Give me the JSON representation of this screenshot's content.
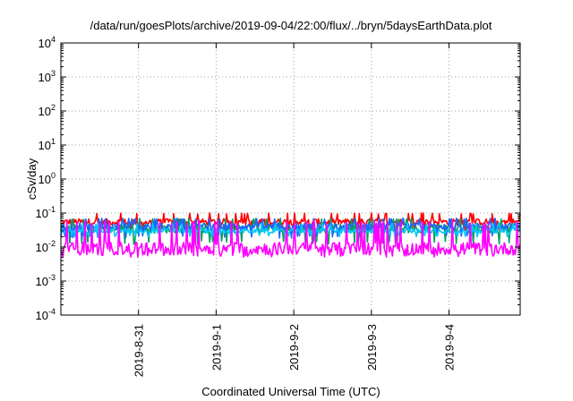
{
  "chart_data": {
    "type": "line",
    "title": "/data/run/goesPlots/archive/2019-09-04/22:00/flux/../bryn/5daysEarthData.plot",
    "xlabel": "Coordinated Universal Time (UTC)",
    "ylabel": "cSv/day",
    "yscale": "log",
    "ylim": [
      0.0001,
      10000
    ],
    "yticks": [
      {
        "value": 0.0001,
        "base": "10",
        "exp": "-4"
      },
      {
        "value": 0.001,
        "base": "10",
        "exp": "-3"
      },
      {
        "value": 0.01,
        "base": "10",
        "exp": "-2"
      },
      {
        "value": 0.1,
        "base": "10",
        "exp": "-1"
      },
      {
        "value": 1,
        "base": "10",
        "exp": "0"
      },
      {
        "value": 10,
        "base": "10",
        "exp": "1"
      },
      {
        "value": 100,
        "base": "10",
        "exp": "2"
      },
      {
        "value": 1000,
        "base": "10",
        "exp": "3"
      },
      {
        "value": 10000,
        "base": "10",
        "exp": "4"
      }
    ],
    "xlim": [
      "2019-08-30 00:00",
      "2019-09-04 22:00"
    ],
    "xticks": [
      "2019-8-31",
      "2019-9-1",
      "2019-9-2",
      "2019-9-3",
      "2019-9-4"
    ],
    "grid": true,
    "series": [
      {
        "color": "#ff0000",
        "typical": 0.055,
        "low": 0.03,
        "high": 0.1
      },
      {
        "color": "#00a060",
        "typical": 0.035,
        "low": 0.012,
        "high": 0.07
      },
      {
        "color": "#1e64ff",
        "typical": 0.04,
        "low": 0.018,
        "high": 0.07
      },
      {
        "color": "#00c8ff",
        "typical": 0.03,
        "low": 0.02,
        "high": 0.05
      },
      {
        "color": "#ff00ff",
        "typical": 0.009,
        "low": 0.005,
        "high": 0.06
      }
    ]
  }
}
